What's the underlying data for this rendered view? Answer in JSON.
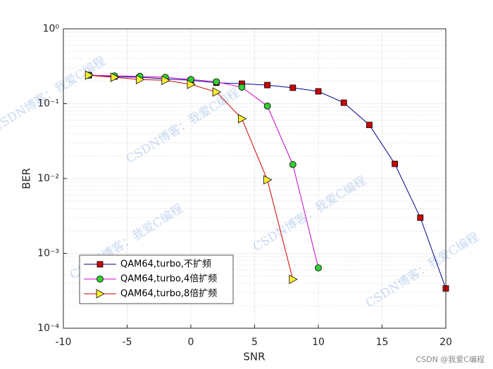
{
  "chart_data": {
    "type": "line",
    "xlabel": "SNR",
    "ylabel": "BER",
    "log_y": true,
    "grid": true,
    "legend": "lower left",
    "watermark": "CSDN博客：我爱C编程",
    "credit": "CSDN @我爱C编程",
    "xlim": [
      -10,
      20
    ],
    "xticks": [
      -10,
      -5,
      0,
      5,
      10,
      15,
      20
    ],
    "ylim": [
      0.0001,
      1
    ],
    "yticks": [
      {
        "value": 0.0001,
        "label": "10⁻⁴"
      },
      {
        "value": 0.001,
        "label": "10⁻³"
      },
      {
        "value": 0.01,
        "label": "10⁻²"
      },
      {
        "value": 0.1,
        "label": "10⁻¹"
      },
      {
        "value": 1,
        "label": "10⁰"
      }
    ],
    "series": [
      {
        "name": "QAM64,turbo,不扩频",
        "color": "#00008b",
        "marker": "square",
        "marker_color": "#cc0000",
        "x": [
          -8,
          -6,
          -4,
          -2,
          0,
          2,
          4,
          6,
          8,
          10,
          12,
          14,
          16,
          18,
          20
        ],
        "values": [
          0.24,
          0.23,
          0.225,
          0.215,
          0.205,
          0.19,
          0.185,
          0.177,
          0.163,
          0.146,
          0.103,
          0.052,
          0.0157,
          0.003,
          0.00034
        ]
      },
      {
        "name": "QAM64,turbo,4倍扩频",
        "color": "#cc00cc",
        "marker": "circle",
        "marker_color": "#33cc33",
        "x": [
          -8,
          -6,
          -4,
          -2,
          0,
          2,
          4,
          6,
          8,
          10
        ],
        "values": [
          0.24,
          0.235,
          0.232,
          0.225,
          0.21,
          0.196,
          0.166,
          0.093,
          0.0154,
          0.00064
        ]
      },
      {
        "name": "QAM64,turbo,8倍扩频",
        "color": "#cc0000",
        "marker": "triangle",
        "marker_color": "#ffee33",
        "x": [
          -8,
          -6,
          -4,
          -2,
          0,
          2,
          4,
          6,
          8
        ],
        "values": [
          0.24,
          0.225,
          0.21,
          0.205,
          0.181,
          0.143,
          0.063,
          0.0096,
          0.00045
        ]
      }
    ]
  }
}
